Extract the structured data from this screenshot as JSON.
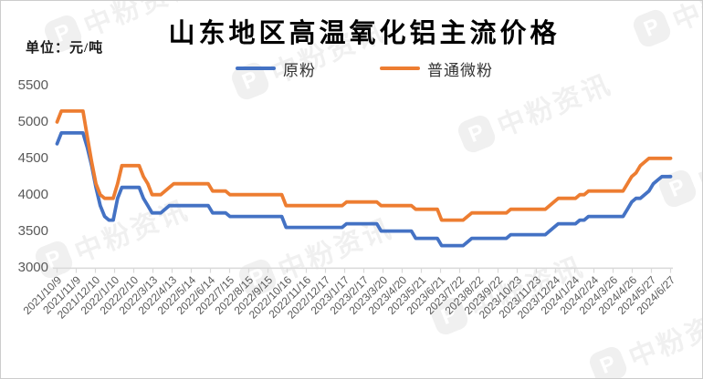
{
  "header": {
    "title": "山东地区高温氧化铝主流价格",
    "unit_label": "单位：元/吨"
  },
  "watermark": {
    "logo_letter": "P",
    "brand": "中粉资讯"
  },
  "chart_data": {
    "type": "line",
    "title": "山东地区高温氧化铝主流价格",
    "unit": "元/吨",
    "grid": false,
    "legend_position": "top-center",
    "ylim": [
      3000,
      5500
    ],
    "y_ticks": [
      3000,
      3500,
      4000,
      4500,
      5000,
      5500
    ],
    "x_labels": [
      "2021/10/9",
      "2021/11/9",
      "2021/12/10",
      "2022/1/10",
      "2022/2/10",
      "2022/3/13",
      "2022/4/13",
      "2022/5/14",
      "2022/6/14",
      "2022/7/15",
      "2022/8/15",
      "2022/9/15",
      "2022/10/16",
      "2022/11/16",
      "2022/12/17",
      "2023/1/17",
      "2023/2/17",
      "2023/3/20",
      "2023/4/20",
      "2023/5/21",
      "2023/6/21",
      "2023/7/22",
      "2023/8/22",
      "2023/9/22",
      "2023/10/23",
      "2023/11/23",
      "2023/12/24",
      "2024/1/24",
      "2024/2/24",
      "2024/3/26",
      "2024/4/26",
      "2024/5/27",
      "2024/6/27"
    ],
    "x_note": "weekly data points, labels approximately monthly",
    "series": [
      {
        "name": "原粉",
        "color": "#4472C4",
        "values": [
          4700,
          4850,
          4850,
          4850,
          4850,
          4850,
          4850,
          4650,
          4400,
          4100,
          3850,
          3700,
          3650,
          3650,
          3950,
          4100,
          4100,
          4100,
          4100,
          4100,
          3950,
          3850,
          3750,
          3750,
          3750,
          3800,
          3850,
          3850,
          3850,
          3850,
          3850,
          3850,
          3850,
          3850,
          3850,
          3850,
          3750,
          3750,
          3750,
          3750,
          3700,
          3700,
          3700,
          3700,
          3700,
          3700,
          3700,
          3700,
          3700,
          3700,
          3700,
          3700,
          3700,
          3550,
          3550,
          3550,
          3550,
          3550,
          3550,
          3550,
          3550,
          3550,
          3550,
          3550,
          3550,
          3550,
          3550,
          3600,
          3600,
          3600,
          3600,
          3600,
          3600,
          3600,
          3600,
          3500,
          3500,
          3500,
          3500,
          3500,
          3500,
          3500,
          3500,
          3400,
          3400,
          3400,
          3400,
          3400,
          3400,
          3300,
          3300,
          3300,
          3300,
          3300,
          3300,
          3350,
          3400,
          3400,
          3400,
          3400,
          3400,
          3400,
          3400,
          3400,
          3400,
          3450,
          3450,
          3450,
          3450,
          3450,
          3450,
          3450,
          3450,
          3450,
          3500,
          3550,
          3600,
          3600,
          3600,
          3600,
          3600,
          3650,
          3650,
          3700,
          3700,
          3700,
          3700,
          3700,
          3700,
          3700,
          3700,
          3700,
          3800,
          3900,
          3950,
          3950,
          4000,
          4050,
          4150,
          4200,
          4250,
          4250,
          4250
        ]
      },
      {
        "name": "普通微粉",
        "color": "#ED7D31",
        "values": [
          5000,
          5150,
          5150,
          5150,
          5150,
          5150,
          5150,
          4800,
          4450,
          4150,
          4000,
          3950,
          3950,
          3950,
          4150,
          4400,
          4400,
          4400,
          4400,
          4400,
          4250,
          4150,
          4000,
          4000,
          4000,
          4050,
          4100,
          4150,
          4150,
          4150,
          4150,
          4150,
          4150,
          4150,
          4150,
          4150,
          4050,
          4050,
          4050,
          4050,
          4000,
          4000,
          4000,
          4000,
          4000,
          4000,
          4000,
          4000,
          4000,
          4000,
          4000,
          4000,
          4000,
          3850,
          3850,
          3850,
          3850,
          3850,
          3850,
          3850,
          3850,
          3850,
          3850,
          3850,
          3850,
          3850,
          3850,
          3900,
          3900,
          3900,
          3900,
          3900,
          3900,
          3900,
          3900,
          3850,
          3850,
          3850,
          3850,
          3850,
          3850,
          3850,
          3850,
          3800,
          3800,
          3800,
          3800,
          3800,
          3800,
          3650,
          3650,
          3650,
          3650,
          3650,
          3650,
          3700,
          3750,
          3750,
          3750,
          3750,
          3750,
          3750,
          3750,
          3750,
          3750,
          3800,
          3800,
          3800,
          3800,
          3800,
          3800,
          3800,
          3800,
          3800,
          3850,
          3900,
          3950,
          3950,
          3950,
          3950,
          3950,
          4000,
          4000,
          4050,
          4050,
          4050,
          4050,
          4050,
          4050,
          4050,
          4050,
          4050,
          4150,
          4250,
          4300,
          4400,
          4450,
          4500,
          4500,
          4500,
          4500,
          4500,
          4500
        ]
      }
    ]
  }
}
